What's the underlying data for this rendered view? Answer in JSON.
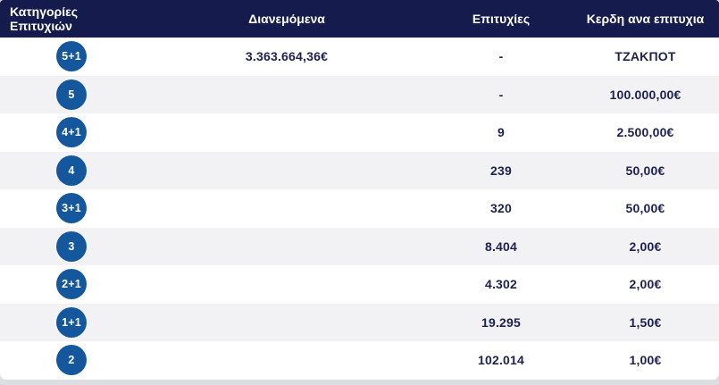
{
  "colors": {
    "page_bg": "#dcdee1",
    "header_bg": "#151b4c",
    "header_text": "#ffffff",
    "row_bg": "#ffffff",
    "row_alt_bg": "#f2f2f4",
    "text_navy": "#1c2150",
    "badge_bg": "#15579c",
    "badge_text": "#ffffff"
  },
  "table": {
    "columns": [
      {
        "label": "Κατηγορίες Επιτυχιών"
      },
      {
        "label": "Διανεμόμενα"
      },
      {
        "label": "Επιτυχίες"
      },
      {
        "label": "Κερδη ανα επιτυχια"
      }
    ],
    "rows": [
      {
        "category": "5+1",
        "distributed": "3.363.664,36€",
        "wins": "-",
        "prize": "ΤΖΑΚΠΟΤ"
      },
      {
        "category": "5",
        "distributed": "",
        "wins": "-",
        "prize": "100.000,00€"
      },
      {
        "category": "4+1",
        "distributed": "",
        "wins": "9",
        "prize": "2.500,00€"
      },
      {
        "category": "4",
        "distributed": "",
        "wins": "239",
        "prize": "50,00€"
      },
      {
        "category": "3+1",
        "distributed": "",
        "wins": "320",
        "prize": "50,00€"
      },
      {
        "category": "3",
        "distributed": "",
        "wins": "8.404",
        "prize": "2,00€"
      },
      {
        "category": "2+1",
        "distributed": "",
        "wins": "4.302",
        "prize": "2,00€"
      },
      {
        "category": "1+1",
        "distributed": "",
        "wins": "19.295",
        "prize": "1,50€"
      },
      {
        "category": "2",
        "distributed": "",
        "wins": "102.014",
        "prize": "1,00€"
      }
    ]
  }
}
